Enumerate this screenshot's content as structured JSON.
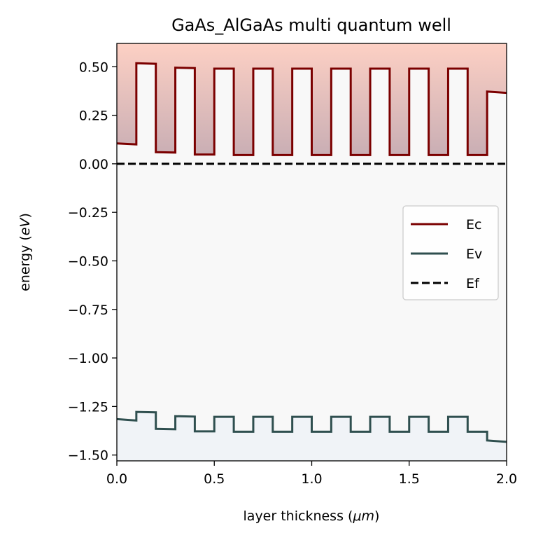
{
  "chart_data": {
    "type": "line",
    "title": "GaAs_AlGaAs multi quantum well",
    "xlabel_prefix": "layer thickness (",
    "xlabel_unit": "μm",
    "xlabel_suffix": ")",
    "ylabel_prefix": "energy (",
    "ylabel_unit": "eV",
    "ylabel_suffix": ")",
    "xlim": [
      0,
      2.0
    ],
    "ylim": [
      -1.53,
      0.62
    ],
    "xticks": [
      0.0,
      0.5,
      1.0,
      1.5,
      2.0
    ],
    "xtick_labels": [
      "0.0",
      "0.5",
      "1.0",
      "1.5",
      "2.0"
    ],
    "yticks": [
      0.5,
      0.25,
      0.0,
      -0.25,
      -0.5,
      -0.75,
      -1.0,
      -1.25,
      -1.5
    ],
    "ytick_labels": [
      "0.50",
      "0.25",
      "0.00",
      "−0.25",
      "−0.50",
      "−0.75",
      "−1.00",
      "−1.25",
      "−1.50"
    ],
    "legend_position": "center-right",
    "grid": false,
    "colors": {
      "ec": "#7b0000",
      "ev": "#2f4f4f",
      "ef": "#000000",
      "plot_bg": "#f8f8f8",
      "cb_fill_top": "#fdd0c4",
      "cb_fill_bottom": "#c9aeb4",
      "vb_fill": "#f0f3f7"
    },
    "series": [
      {
        "name": "Ec",
        "style": "solid",
        "x": [
          0.0,
          0.1,
          0.1,
          0.2,
          0.2,
          0.3,
          0.3,
          0.4,
          0.4,
          0.5,
          0.5,
          0.6,
          0.6,
          0.7,
          0.7,
          0.8,
          0.8,
          0.9,
          0.9,
          1.0,
          1.0,
          1.1,
          1.1,
          1.2,
          1.2,
          1.3,
          1.3,
          1.4,
          1.4,
          1.5,
          1.5,
          1.6,
          1.6,
          1.7,
          1.7,
          1.8,
          1.8,
          1.9,
          1.9,
          2.0
        ],
        "y": [
          0.105,
          0.1,
          0.518,
          0.515,
          0.06,
          0.058,
          0.495,
          0.493,
          0.048,
          0.048,
          0.49,
          0.49,
          0.045,
          0.045,
          0.49,
          0.49,
          0.045,
          0.045,
          0.49,
          0.49,
          0.045,
          0.045,
          0.49,
          0.49,
          0.045,
          0.045,
          0.49,
          0.49,
          0.045,
          0.045,
          0.49,
          0.49,
          0.045,
          0.045,
          0.49,
          0.49,
          0.045,
          0.045,
          0.372,
          0.365
        ]
      },
      {
        "name": "Ev",
        "style": "solid",
        "x": [
          0.0,
          0.1,
          0.1,
          0.2,
          0.2,
          0.3,
          0.3,
          0.4,
          0.4,
          0.5,
          0.5,
          0.6,
          0.6,
          0.7,
          0.7,
          0.8,
          0.8,
          0.9,
          0.9,
          1.0,
          1.0,
          1.1,
          1.1,
          1.2,
          1.2,
          1.3,
          1.3,
          1.4,
          1.4,
          1.5,
          1.5,
          1.6,
          1.6,
          1.7,
          1.7,
          1.8,
          1.8,
          1.9,
          1.9,
          2.0
        ],
        "y": [
          -1.315,
          -1.322,
          -1.278,
          -1.28,
          -1.365,
          -1.367,
          -1.3,
          -1.302,
          -1.378,
          -1.378,
          -1.303,
          -1.303,
          -1.38,
          -1.38,
          -1.303,
          -1.303,
          -1.38,
          -1.38,
          -1.303,
          -1.303,
          -1.38,
          -1.38,
          -1.303,
          -1.303,
          -1.38,
          -1.38,
          -1.303,
          -1.303,
          -1.38,
          -1.38,
          -1.303,
          -1.303,
          -1.38,
          -1.38,
          -1.303,
          -1.303,
          -1.38,
          -1.38,
          -1.425,
          -1.432
        ]
      },
      {
        "name": "Ef",
        "style": "dashed",
        "x": [
          0.0,
          2.0
        ],
        "y": [
          0.0,
          0.0
        ]
      }
    ]
  }
}
